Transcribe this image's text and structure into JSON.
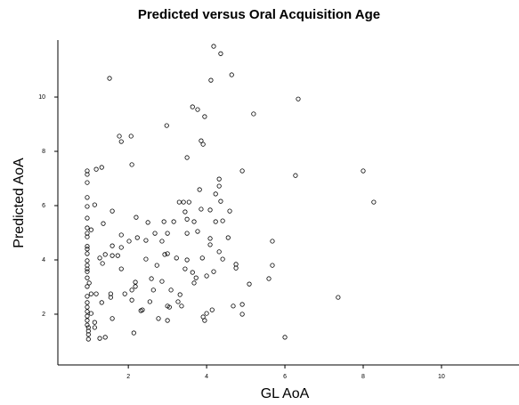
{
  "chart_data": {
    "type": "scatter",
    "title": "Predicted versus Oral Acquisition Age",
    "xlabel": "GL AoA",
    "ylabel": "Predicted AoA",
    "xlim": [
      0.2,
      11.98
    ],
    "ylim": [
      0.13,
      12.1
    ],
    "xticks": [
      2,
      4,
      6,
      8,
      10
    ],
    "yticks": [
      2,
      4,
      6,
      8,
      10
    ],
    "grid": false,
    "color": "#000000",
    "series": [
      {
        "name": "AoA",
        "x": [
          4.18,
          4.36,
          1.52,
          4.64,
          4.11,
          6.34,
          3.64,
          3.77,
          3.95,
          5.2,
          2.98,
          1.77,
          2.07,
          1.82,
          3.86,
          3.91,
          3.5,
          2.09,
          1.32,
          1.18,
          4.91,
          8.0,
          0.95,
          0.95,
          6.27,
          0.95,
          3.82,
          4.32,
          4.32,
          4.36,
          4.23,
          0.95,
          0.95,
          1.14,
          8.27,
          1.59,
          2.2,
          3.3,
          3.41,
          3.55,
          3.45,
          3.5,
          4.09,
          3.86,
          4.59,
          1.36,
          0.95,
          1.05,
          2.91,
          2.5,
          3.16,
          3.68,
          4.23,
          4.41,
          3.77,
          2.68,
          3.0,
          3.5,
          0.95,
          1.82,
          2.23,
          2.02,
          2.45,
          2.86,
          4.09,
          4.55,
          5.68,
          0.95,
          0.95,
          1.59,
          1.82,
          1.41,
          1.59,
          1.73,
          1.27,
          2.93,
          3.0,
          3.23,
          2.45,
          3.5,
          3.89,
          4.41,
          4.09,
          4.32,
          0.95,
          0.95,
          0.95,
          4.75,
          4.75,
          1.34,
          2.73,
          1.82,
          3.45,
          3.64,
          4.18,
          5.68,
          0.95,
          0.95,
          3.73,
          4.0,
          1.0,
          1.05,
          2.86,
          2.18,
          5.09,
          5.59,
          3.68,
          2.09,
          2.18,
          0.95,
          0.95,
          0.95,
          1.55,
          1.55,
          3.09,
          2.64,
          7.36,
          1.18,
          1.91,
          3.27,
          1.32,
          2.09,
          2.55,
          3.0,
          3.05,
          3.36,
          4.68,
          4.91,
          2.36,
          2.32,
          4.91,
          4.0,
          4.14,
          0.95,
          0.95,
          0.95,
          1.05,
          2.77,
          3.0,
          3.91,
          3.95,
          1.14,
          1.14,
          1.59,
          0.98,
          0.98,
          0.98,
          0.98,
          2.14,
          1.27,
          1.41,
          6.0,
          3.32,
          2.59,
          0.95,
          0.95,
          0.95,
          0.95,
          0.95
        ],
        "y": [
          11.87,
          11.6,
          10.69,
          10.82,
          10.62,
          9.93,
          9.64,
          9.54,
          9.28,
          9.38,
          8.95,
          8.56,
          8.56,
          8.36,
          8.39,
          8.26,
          7.77,
          7.51,
          7.41,
          7.34,
          7.28,
          7.28,
          7.28,
          7.15,
          7.11,
          6.85,
          6.59,
          6.98,
          6.72,
          6.16,
          6.43,
          6.3,
          5.97,
          6.03,
          6.13,
          5.8,
          5.57,
          6.13,
          6.13,
          6.13,
          5.77,
          5.5,
          5.84,
          5.87,
          5.8,
          5.34,
          5.54,
          5.11,
          5.41,
          5.38,
          5.41,
          5.41,
          5.41,
          5.44,
          5.05,
          4.98,
          4.98,
          4.98,
          4.85,
          4.92,
          4.82,
          4.69,
          4.72,
          4.69,
          4.79,
          4.82,
          4.69,
          4.5,
          4.4,
          4.52,
          4.46,
          4.2,
          4.16,
          4.16,
          4.07,
          4.2,
          4.23,
          4.07,
          4.03,
          4.0,
          4.07,
          4.03,
          4.56,
          4.3,
          4.23,
          3.97,
          3.8,
          3.84,
          3.7,
          3.87,
          3.8,
          3.67,
          3.67,
          3.54,
          3.57,
          3.8,
          3.57,
          3.34,
          3.34,
          3.41,
          3.15,
          2.75,
          3.21,
          3.18,
          3.11,
          3.31,
          3.15,
          2.89,
          3.02,
          3.02,
          2.66,
          2.43,
          2.75,
          2.62,
          2.89,
          2.89,
          2.62,
          2.75,
          2.75,
          2.46,
          2.43,
          2.52,
          2.46,
          2.3,
          2.26,
          2.3,
          2.3,
          2.36,
          2.16,
          2.13,
          2.0,
          2.03,
          2.16,
          2.1,
          1.93,
          1.77,
          2.03,
          1.84,
          1.77,
          1.9,
          1.77,
          1.7,
          1.51,
          1.84,
          1.51,
          1.38,
          1.25,
          1.08,
          1.31,
          1.11,
          1.15,
          1.15,
          2.72,
          3.31,
          5.18,
          4.98,
          3.67,
          2.26,
          1.6
        ]
      }
    ]
  }
}
